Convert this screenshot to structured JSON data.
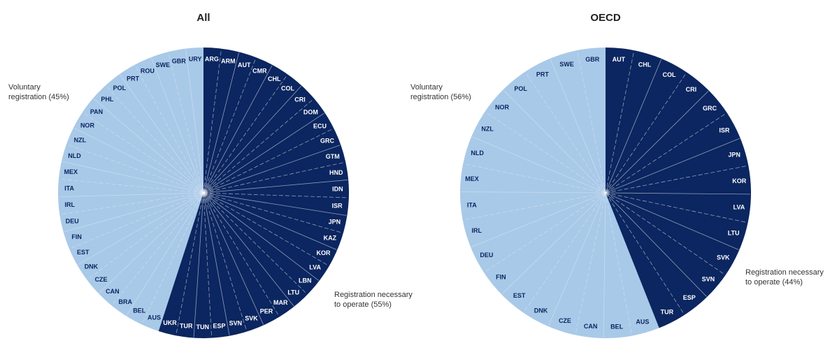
{
  "chart_data": [
    {
      "type": "pie",
      "title": "All",
      "slices": [
        {
          "name": "Registration necessary to operate",
          "value": 55,
          "color": "#0b2660"
        },
        {
          "name": "Voluntary registration",
          "value": 45,
          "color": "#a9c9e8"
        }
      ],
      "annotations": {
        "necessary": [
          "Registration necessary",
          "to operate (55%)"
        ],
        "voluntary": [
          "Voluntary",
          "registration (45%)"
        ]
      },
      "countries_necessary": [
        "ARG",
        "ARM",
        "AUT",
        "CMR",
        "CHL",
        "COL",
        "CRI",
        "DOM",
        "ECU",
        "GRC",
        "GTM",
        "HND",
        "IDN",
        "ISR",
        "JPN",
        "KAZ",
        "KOR",
        "LVA",
        "LBN",
        "LTU",
        "MAR",
        "PER",
        "SVK",
        "SVN",
        "ESP",
        "TUN",
        "TUR",
        "UKR"
      ],
      "countries_voluntary": [
        "AUS",
        "BEL",
        "BRA",
        "CAN",
        "CZE",
        "DNK",
        "EST",
        "FIN",
        "DEU",
        "IRL",
        "ITA",
        "MEX",
        "NLD",
        "NZL",
        "NOR",
        "PAN",
        "PHL",
        "POL",
        "PRT",
        "ROU",
        "SWE",
        "GBR",
        "URY"
      ]
    },
    {
      "type": "pie",
      "title": "OECD",
      "slices": [
        {
          "name": "Registration necessary to operate",
          "value": 44,
          "color": "#0b2660"
        },
        {
          "name": "Voluntary registration",
          "value": 56,
          "color": "#a9c9e8"
        }
      ],
      "annotations": {
        "necessary": [
          "Registration necessary",
          "to operate (44%)"
        ],
        "voluntary": [
          "Voluntary",
          "registration (56%)"
        ]
      },
      "countries_necessary": [
        "AUT",
        "CHL",
        "COL",
        "CRI",
        "GRC",
        "ISR",
        "JPN",
        "KOR",
        "LVA",
        "LTU",
        "SVK",
        "SVN",
        "ESP",
        "TUR"
      ],
      "countries_voluntary": [
        "AUS",
        "BEL",
        "CAN",
        "CZE",
        "DNK",
        "EST",
        "FIN",
        "DEU",
        "IRL",
        "ITA",
        "MEX",
        "NLD",
        "NZL",
        "NOR",
        "POL",
        "PRT",
        "SWE",
        "GBR"
      ]
    }
  ]
}
